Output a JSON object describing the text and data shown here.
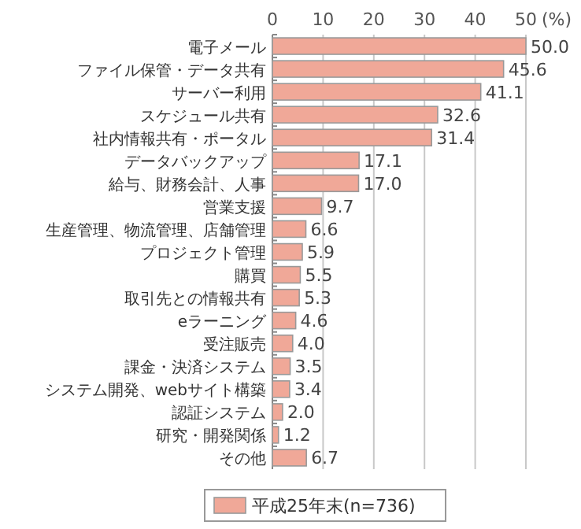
{
  "chart_data": {
    "type": "bar",
    "orientation": "horizontal",
    "xlabel": "(%)",
    "categories": [
      "電子メール",
      "ファイル保管・データ共有",
      "サーバー利用",
      "スケジュール共有",
      "社内情報共有・ポータル",
      "データバックアップ",
      "給与、財務会計、人事",
      "営業支援",
      "生産管理、物流管理、店舗管理",
      "プロジェクト管理",
      "購買",
      "取引先との情報共有",
      "eラーニング",
      "受注販売",
      "課金・決済システム",
      "システム開発、webサイト構築",
      "認証システム",
      "研究・開発関係",
      "その他"
    ],
    "series": [
      {
        "name": "平成25年末(n=736)",
        "color": "#f0a898",
        "values": [
          50.0,
          45.6,
          41.1,
          32.6,
          31.4,
          17.1,
          17.0,
          9.7,
          6.6,
          5.9,
          5.5,
          5.3,
          4.6,
          4.0,
          3.5,
          3.4,
          2.0,
          1.2,
          6.7
        ]
      }
    ],
    "value_labels": [
      "50.0",
      "45.6",
      "41.1",
      "32.6",
      "31.4",
      "17.1",
      "17.0",
      "9.7",
      "6.6",
      "5.9",
      "5.5",
      "5.3",
      "4.6",
      "4.0",
      "3.5",
      "3.4",
      "2.0",
      "1.2",
      "6.7"
    ],
    "xlim": [
      0,
      50
    ],
    "xticks": [
      0,
      10,
      20,
      30,
      40,
      50
    ],
    "grid": "x",
    "legend": "bottom"
  }
}
